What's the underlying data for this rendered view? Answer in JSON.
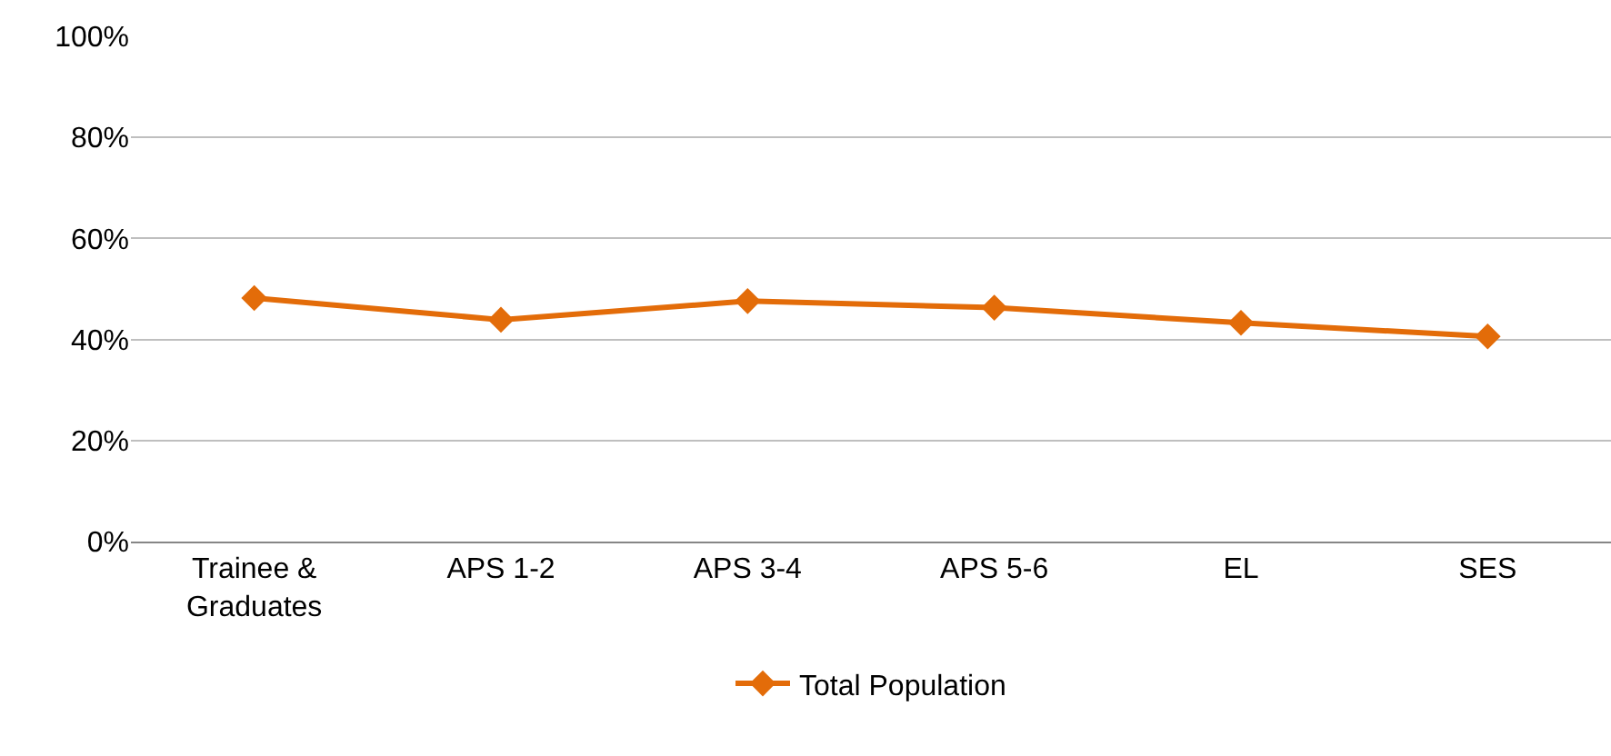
{
  "chart_data": {
    "type": "line",
    "categories": [
      "Trainee &\nGraduates",
      "APS 1-2",
      "APS 3-4",
      "APS 5-6",
      "EL",
      "SES"
    ],
    "series": [
      {
        "name": "Total Population",
        "color": "#e36c09",
        "values": [
          48.2,
          43.9,
          47.6,
          46.3,
          43.3,
          40.6
        ]
      }
    ],
    "ylim": [
      0,
      100
    ],
    "yticks": [
      {
        "value": 0,
        "label": "0%"
      },
      {
        "value": 20,
        "label": "20%"
      },
      {
        "value": 40,
        "label": "40%"
      },
      {
        "value": 60,
        "label": "60%"
      },
      {
        "value": 80,
        "label": "80%"
      },
      {
        "value": 100,
        "label": "100%"
      }
    ],
    "grid": "y",
    "legend": "bottom",
    "marker": "diamond",
    "line_style": "solid"
  }
}
